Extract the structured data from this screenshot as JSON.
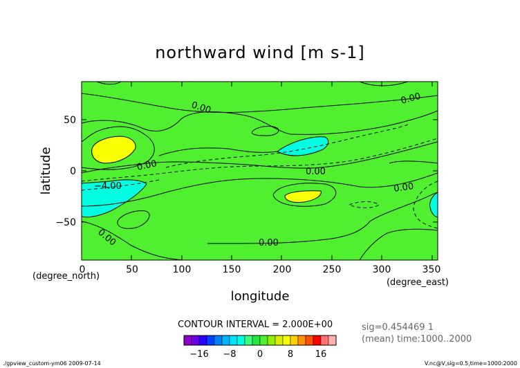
{
  "chart_data": {
    "type": "contour",
    "title": "northward wind [m s-1]",
    "xlabel": "longitude",
    "ylabel": "latitude",
    "xlim": [
      0,
      356
    ],
    "ylim": [
      -87,
      87
    ],
    "x_ticks": [
      "0",
      "50",
      "100",
      "150",
      "200",
      "250",
      "300",
      "350"
    ],
    "y_ticks": [
      "50",
      "0",
      "−50"
    ],
    "x_unit": "(degree_east)",
    "y_unit": "(degree_north)",
    "contour_labels": [
      "0.00",
      "0.00",
      "0.00",
      "0.00",
      "0.00",
      "0.00",
      "0.00",
      "−4.00"
    ],
    "contour_interval_text": "CONTOUR INTERVAL = 2.000E+00",
    "colorbar": {
      "levels": [
        -20,
        -18,
        -16,
        -14,
        -12,
        -10,
        -8,
        -6,
        -4,
        -2,
        0,
        2,
        4,
        6,
        8,
        10,
        12,
        14,
        16,
        18,
        20
      ],
      "colors": [
        "#8c00c8",
        "#6a00e6",
        "#2a00ff",
        "#0040ff",
        "#0080ff",
        "#00b4ff",
        "#00e0ff",
        "#00ffe0",
        "#40ff80",
        "#20e840",
        "#50f030",
        "#90f000",
        "#d8f000",
        "#f8ff00",
        "#ffd000",
        "#ff9000",
        "#ff5000",
        "#ff0000",
        "#ff7070",
        "#ffb0b0"
      ],
      "tick_labels": [
        "−16",
        "−8",
        "0",
        "8",
        "16"
      ]
    },
    "annotations": {
      "sig": "sig=0.454469 1",
      "time": "(mean) time:1000..2000"
    },
    "regions": [
      {
        "level_color": "#00ffe0",
        "label": "negative",
        "lon": 200,
        "lat": 20
      },
      {
        "level_color": "#00ffe0",
        "label": "negative",
        "lon": 10,
        "lat": -25
      },
      {
        "level_color": "#00ffe0",
        "label": "negative",
        "lon": 355,
        "lat": -30
      },
      {
        "level_color": "#f8ff00",
        "label": "positive",
        "lon": 30,
        "lat": 18
      },
      {
        "level_color": "#f8ff00",
        "label": "positive",
        "lon": 222,
        "lat": -23
      }
    ]
  },
  "footer": {
    "left": "./gpview_custom-ym06  2009-07-14",
    "right": "V.nc@V,sig=0.5,time=1000:2000"
  },
  "colors": {
    "background": "#ffffff",
    "plot_fill": "#50f030",
    "negative_fill": "#00ffe0",
    "positive_fill": "#f8ff00"
  }
}
